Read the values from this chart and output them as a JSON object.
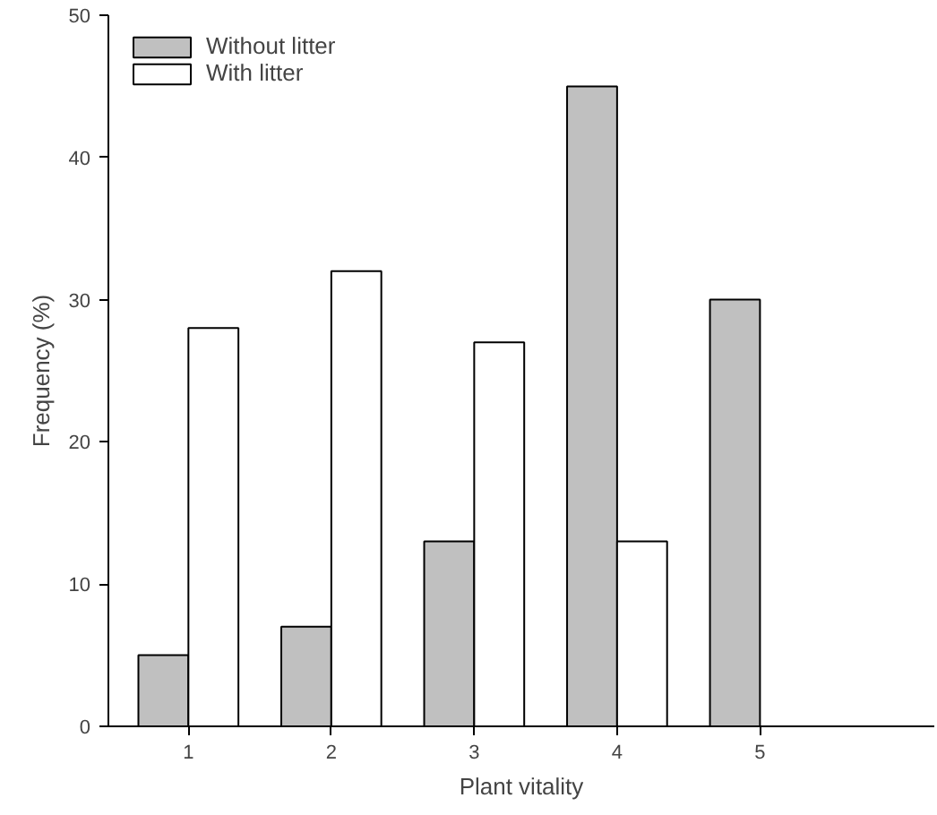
{
  "chart_data": {
    "type": "bar",
    "xlabel": "Plant vitality",
    "ylabel": "Frequency (%)",
    "categories": [
      "1",
      "2",
      "3",
      "4",
      "5"
    ],
    "series": [
      {
        "name": "Without litter",
        "color": "#c0c0c0",
        "values": [
          5,
          7,
          13,
          45,
          30
        ]
      },
      {
        "name": "With litter",
        "color": "#ffffff",
        "values": [
          28,
          32,
          27,
          13,
          null
        ]
      }
    ],
    "ylim": [
      0,
      50
    ],
    "yticks": [
      0,
      10,
      20,
      30,
      40,
      50
    ],
    "grid": false,
    "legend": "top left"
  }
}
